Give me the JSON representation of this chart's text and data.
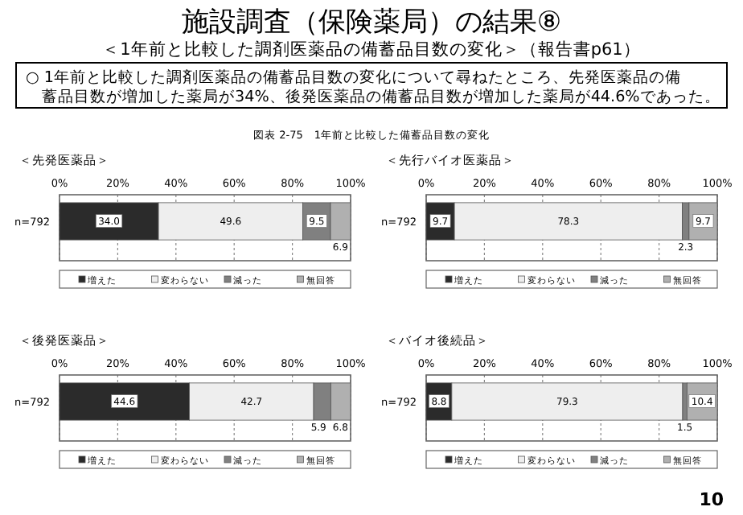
{
  "chart_data": [
    {
      "type": "other",
      "title": "施設調査（保険薬局）の結果⑧",
      "subtitle": "＜1年前と比較した調剤医薬品の備蓄品目数の変化＞（報告書p61）",
      "annotations": [
        "○ 1年前と比較した調剤医薬品の備蓄品目数の変化について尋ねたところ、先発医薬品の備蓄品目数が増加した薬局が34%、後発医薬品の備蓄品目数が増加した薬局が44.6%であった。",
        "図表 2-75　1年前と比較した備蓄品目数の変化",
        "10"
      ]
    },
    {
      "type": "bar",
      "orientation": "horizontal",
      "stacked": true,
      "title": "＜先発医薬品＞",
      "categories": [
        "n=792"
      ],
      "xlim": [
        0,
        100
      ],
      "xticks": [
        {
          "value": 0,
          "label": "0%"
        },
        {
          "value": 20,
          "label": "20%"
        },
        {
          "value": 40,
          "label": "40%"
        },
        {
          "value": 60,
          "label": "60%"
        },
        {
          "value": 80,
          "label": "80%"
        },
        {
          "value": 100,
          "label": "100%"
        }
      ],
      "grid": "x",
      "legend": "bottom",
      "series": [
        {
          "name": "増えた",
          "color": "#2b2b2b",
          "values": [
            34.0
          ],
          "value_labels": [
            "34.0"
          ]
        },
        {
          "name": "変わらない",
          "color": "#eeeeee",
          "values": [
            49.6
          ],
          "value_labels": [
            "49.6"
          ]
        },
        {
          "name": "減った",
          "color": "#808080",
          "values": [
            9.5
          ],
          "value_labels": [
            "9.5"
          ]
        },
        {
          "name": "無回答",
          "color": "#b0b0b0",
          "values": [
            6.9
          ],
          "value_labels": [
            "6.9"
          ]
        }
      ]
    },
    {
      "type": "bar",
      "orientation": "horizontal",
      "stacked": true,
      "title": "＜先行バイオ医薬品＞",
      "categories": [
        "n=792"
      ],
      "xlim": [
        0,
        100
      ],
      "xticks": [
        {
          "value": 0,
          "label": "0%"
        },
        {
          "value": 20,
          "label": "20%"
        },
        {
          "value": 40,
          "label": "40%"
        },
        {
          "value": 60,
          "label": "60%"
        },
        {
          "value": 80,
          "label": "80%"
        },
        {
          "value": 100,
          "label": "100%"
        }
      ],
      "grid": "x",
      "legend": "bottom",
      "series": [
        {
          "name": "増えた",
          "color": "#2b2b2b",
          "values": [
            9.7
          ],
          "value_labels": [
            "9.7"
          ]
        },
        {
          "name": "変わらない",
          "color": "#eeeeee",
          "values": [
            78.3
          ],
          "value_labels": [
            "78.3"
          ]
        },
        {
          "name": "減った",
          "color": "#808080",
          "values": [
            2.3
          ],
          "value_labels": [
            "2.3"
          ]
        },
        {
          "name": "無回答",
          "color": "#b0b0b0",
          "values": [
            9.7
          ],
          "value_labels": [
            "9.7"
          ]
        }
      ]
    },
    {
      "type": "bar",
      "orientation": "horizontal",
      "stacked": true,
      "title": "＜後発医薬品＞",
      "categories": [
        "n=792"
      ],
      "xlim": [
        0,
        100
      ],
      "xticks": [
        {
          "value": 0,
          "label": "0%"
        },
        {
          "value": 20,
          "label": "20%"
        },
        {
          "value": 40,
          "label": "40%"
        },
        {
          "value": 60,
          "label": "60%"
        },
        {
          "value": 80,
          "label": "80%"
        },
        {
          "value": 100,
          "label": "100%"
        }
      ],
      "grid": "x",
      "legend": "bottom",
      "series": [
        {
          "name": "増えた",
          "color": "#2b2b2b",
          "values": [
            44.6
          ],
          "value_labels": [
            "44.6"
          ]
        },
        {
          "name": "変わらない",
          "color": "#eeeeee",
          "values": [
            42.7
          ],
          "value_labels": [
            "42.7"
          ]
        },
        {
          "name": "減った",
          "color": "#808080",
          "values": [
            5.9
          ],
          "value_labels": [
            "5.9"
          ]
        },
        {
          "name": "無回答",
          "color": "#b0b0b0",
          "values": [
            6.8
          ],
          "value_labels": [
            "6.8"
          ]
        }
      ]
    },
    {
      "type": "bar",
      "orientation": "horizontal",
      "stacked": true,
      "title": "＜バイオ後続品＞",
      "categories": [
        "n=792"
      ],
      "xlim": [
        0,
        100
      ],
      "xticks": [
        {
          "value": 0,
          "label": "0%"
        },
        {
          "value": 20,
          "label": "20%"
        },
        {
          "value": 40,
          "label": "40%"
        },
        {
          "value": 60,
          "label": "60%"
        },
        {
          "value": 80,
          "label": "80%"
        },
        {
          "value": 100,
          "label": "100%"
        }
      ],
      "grid": "x",
      "legend": "bottom",
      "series": [
        {
          "name": "増えた",
          "color": "#2b2b2b",
          "values": [
            8.8
          ],
          "value_labels": [
            "8.8"
          ]
        },
        {
          "name": "変わらない",
          "color": "#eeeeee",
          "values": [
            79.3
          ],
          "value_labels": [
            "79.3"
          ]
        },
        {
          "name": "減った",
          "color": "#808080",
          "values": [
            1.5
          ],
          "value_labels": [
            "1.5"
          ]
        },
        {
          "name": "無回答",
          "color": "#b0b0b0",
          "values": [
            10.4
          ],
          "value_labels": [
            "10.4"
          ]
        }
      ]
    }
  ]
}
